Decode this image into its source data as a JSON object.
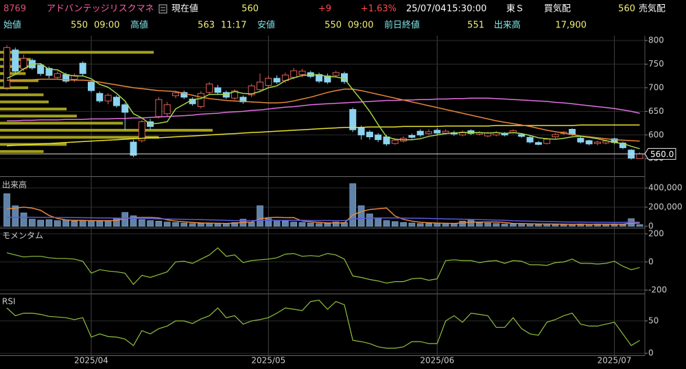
{
  "header": {
    "code": "8769",
    "name": "アドバンテッジリスクマネ",
    "price_label": "現在値",
    "price": "560",
    "change": "+9",
    "change_pct": "+1.63%",
    "date": "25/07/04",
    "time": "15:30:00",
    "market": "東Ｓ",
    "bid_label": "買気配",
    "bid": "560",
    "ask_label": "売気配"
  },
  "summary": {
    "open_label": "始値",
    "open": "550",
    "open_time": "09:00",
    "high_label": "高値",
    "high": "563",
    "high_time": "11:17",
    "low_label": "安値",
    "low": "550",
    "low_time": "09:00",
    "prev_close_label": "前日終値",
    "prev_close": "551",
    "volume_label": "出来高",
    "volume": "17,900"
  },
  "chart_data": [
    {
      "type": "candlestick",
      "categories": [
        null,
        null,
        null,
        null,
        null,
        null,
        null,
        null,
        null,
        null,
        "2025/04",
        null,
        null,
        null,
        null,
        null,
        null,
        null,
        null,
        null,
        null,
        null,
        null,
        null,
        null,
        null,
        null,
        null,
        null,
        null,
        null,
        "2025/05",
        null,
        null,
        null,
        null,
        null,
        null,
        null,
        null,
        null,
        null,
        null,
        null,
        null,
        null,
        null,
        null,
        null,
        null,
        null,
        "2025/06",
        null,
        null,
        null,
        null,
        null,
        null,
        null,
        null,
        null,
        null,
        null,
        null,
        null,
        null,
        null,
        null,
        null,
        null,
        null,
        null,
        "2025/07",
        null,
        null,
        null
      ],
      "open": [
        700,
        780,
        740,
        758,
        748,
        741,
        722,
        728,
        718,
        752,
        712,
        688,
        672,
        680,
        664,
        585,
        588,
        628,
        639,
        645,
        683,
        690,
        676,
        660,
        690,
        700,
        690,
        678,
        680,
        685,
        696,
        705,
        720,
        715,
        722,
        728,
        732,
        728,
        725,
        726,
        730,
        654,
        615,
        606,
        600,
        596,
        582,
        587,
        599,
        608,
        603,
        610,
        604,
        605,
        600,
        609,
        602,
        598,
        600,
        604,
        605,
        601,
        595,
        584,
        582,
        596,
        603,
        612,
        593,
        588,
        582,
        583,
        592,
        583,
        568,
        550
      ],
      "high": [
        790,
        785,
        770,
        762,
        752,
        745,
        735,
        732,
        730,
        756,
        716,
        692,
        688,
        684,
        668,
        590,
        632,
        634,
        680,
        670,
        693,
        694,
        680,
        693,
        712,
        706,
        694,
        697,
        684,
        708,
        730,
        725,
        726,
        732,
        742,
        740,
        736,
        732,
        730,
        736,
        734,
        658,
        620,
        610,
        604,
        600,
        593,
        597,
        603,
        612,
        612,
        614,
        612,
        609,
        610,
        612,
        608,
        607,
        608,
        606,
        612,
        604,
        598,
        587,
        594,
        604,
        608,
        614,
        596,
        590,
        588,
        590,
        594,
        586,
        570,
        563
      ],
      "low": [
        695,
        730,
        735,
        738,
        725,
        720,
        718,
        710,
        712,
        726,
        690,
        668,
        665,
        658,
        610,
        553,
        584,
        612,
        635,
        640,
        678,
        676,
        662,
        656,
        686,
        686,
        676,
        674,
        666,
        680,
        692,
        700,
        708,
        710,
        718,
        722,
        720,
        710,
        708,
        722,
        708,
        606,
        590,
        590,
        585,
        577,
        579,
        584,
        592,
        596,
        600,
        600,
        601,
        598,
        597,
        600,
        599,
        595,
        597,
        597,
        602,
        594,
        582,
        578,
        580,
        593,
        600,
        598,
        582,
        578,
        578,
        580,
        580,
        570,
        548,
        550
      ],
      "close": [
        785,
        735,
        762,
        742,
        730,
        726,
        730,
        714,
        726,
        730,
        694,
        672,
        684,
        662,
        648,
        557,
        628,
        618,
        675,
        664,
        689,
        680,
        666,
        688,
        708,
        690,
        680,
        693,
        670,
        704,
        712,
        720,
        712,
        727,
        736,
        735,
        724,
        714,
        712,
        732,
        713,
        611,
        600,
        596,
        590,
        581,
        589,
        593,
        595,
        600,
        607,
        604,
        608,
        602,
        606,
        603,
        605,
        604,
        605,
        600,
        609,
        597,
        585,
        580,
        591,
        601,
        606,
        601,
        585,
        581,
        585,
        587,
        584,
        573,
        551,
        560
      ],
      "up_color": "#e0605a",
      "down_color": "#8cd3f0",
      "series": [
        {
          "color": "#e8e030",
          "values": [
            577,
            578,
            579,
            580,
            581,
            582,
            583,
            584,
            585,
            586,
            587,
            588,
            589,
            590,
            591,
            592,
            593,
            594,
            594,
            595,
            596,
            597,
            598,
            599,
            600,
            601,
            602,
            603,
            604,
            605,
            606,
            607,
            608,
            609,
            610,
            611,
            612,
            613,
            614,
            615,
            616,
            616,
            616,
            617,
            617,
            617,
            617,
            618,
            618,
            618,
            618,
            618,
            619,
            619,
            619,
            619,
            619,
            619,
            620,
            620,
            620,
            620,
            620,
            620,
            620,
            620,
            620,
            620,
            621,
            621,
            621,
            621,
            621,
            621,
            621,
            621
          ]
        },
        {
          "color": "#e070e0",
          "values": [
            630,
            630,
            631,
            631,
            632,
            632,
            632,
            633,
            633,
            633,
            634,
            634,
            634,
            635,
            635,
            636,
            636,
            637,
            638,
            639,
            640,
            641,
            642,
            644,
            645,
            646,
            648,
            649,
            650,
            652,
            653,
            655,
            657,
            659,
            660,
            662,
            664,
            665,
            666,
            667,
            668,
            669,
            670,
            671,
            672,
            673,
            673,
            674,
            674,
            675,
            675,
            676,
            676,
            677,
            677,
            678,
            678,
            678,
            677,
            676,
            675,
            674,
            673,
            672,
            671,
            669,
            668,
            666,
            664,
            662,
            660,
            658,
            656,
            653,
            650,
            646
          ]
        },
        {
          "color": "#e8883a",
          "values": [
            716,
            716,
            717,
            717,
            718,
            718,
            718,
            717,
            716,
            716,
            715,
            712,
            709,
            706,
            703,
            700,
            698,
            696,
            694,
            693,
            692,
            688,
            684,
            680,
            677,
            675,
            673,
            672,
            671,
            670,
            669,
            668,
            668,
            669,
            672,
            676,
            680,
            685,
            690,
            694,
            697,
            697,
            694,
            690,
            686,
            682,
            678,
            674,
            670,
            666,
            662,
            658,
            654,
            650,
            646,
            642,
            638,
            634,
            630,
            627,
            624,
            621,
            618,
            614,
            610,
            607,
            604,
            601,
            598,
            596,
            594,
            592,
            590,
            589,
            588,
            587
          ]
        },
        {
          "color": "#a6d84a",
          "values": [
            720,
            728,
            740,
            750,
            751,
            739,
            738,
            728,
            725,
            725,
            719,
            707,
            701,
            688,
            672,
            645,
            636,
            623,
            625,
            628,
            655,
            665,
            675,
            677,
            686,
            686,
            686,
            692,
            688,
            687,
            692,
            700,
            704,
            715,
            721,
            726,
            727,
            727,
            724,
            723,
            719,
            696,
            674,
            650,
            622,
            596,
            591,
            590,
            590,
            592,
            597,
            600,
            603,
            604,
            605,
            605,
            605,
            604,
            605,
            603,
            605,
            603,
            599,
            594,
            592,
            591,
            593,
            596,
            597,
            595,
            592,
            588,
            584,
            582,
            576,
            571
          ]
        }
      ],
      "ylim": [
        514,
        803
      ],
      "yticks": [
        550,
        600,
        650,
        700,
        750,
        800
      ],
      "last_label": "560.0",
      "price_volume": {
        "color": "#a3a01c",
        "prices": [
          565,
          580,
          595,
          610,
          625,
          640,
          655,
          670,
          685,
          700,
          715,
          730,
          745,
          760,
          775
        ],
        "volumes": [
          170000,
          260000,
          620000,
          830000,
          480000,
          300000,
          260000,
          190000,
          170000,
          110000,
          150000,
          100000,
          110000,
          120000,
          600000
        ]
      }
    },
    {
      "type": "bar",
      "label": "出来高",
      "values": [
        340000,
        215000,
        140000,
        75000,
        65000,
        70000,
        60000,
        65000,
        55000,
        60000,
        60000,
        55000,
        60000,
        80000,
        145000,
        110000,
        70000,
        60000,
        55000,
        45000,
        40000,
        35000,
        30000,
        30000,
        35000,
        30000,
        30000,
        40000,
        75000,
        40000,
        215000,
        80000,
        60000,
        55000,
        45000,
        40000,
        35000,
        30000,
        30000,
        45000,
        40000,
        445000,
        215000,
        130000,
        85000,
        60000,
        50000,
        40000,
        35000,
        30000,
        30000,
        35000,
        30000,
        30000,
        55000,
        70000,
        40000,
        35000,
        30000,
        25000,
        25000,
        30000,
        25000,
        20000,
        25000,
        20000,
        20000,
        20000,
        25000,
        20000,
        25000,
        20000,
        25000,
        20000,
        80000,
        17900
      ],
      "color": "#5f82a8",
      "series": [
        {
          "color": "#e8883a",
          "values": [
            180000,
            190000,
            200000,
            190000,
            167000,
            113000,
            82000,
            67000,
            63000,
            62000,
            60000,
            59000,
            58000,
            63000,
            80000,
            90000,
            93000,
            93000,
            88000,
            68000,
            54000,
            47000,
            41000,
            36000,
            34000,
            32000,
            31000,
            33000,
            42000,
            43000,
            80000,
            90000,
            94000,
            90000,
            91000,
            56000,
            47000,
            41000,
            36000,
            36000,
            36000,
            118000,
            155000,
            175000,
            183000,
            191000,
            108000,
            73000,
            54000,
            43000,
            37000,
            34000,
            32000,
            31000,
            36000,
            44000,
            45000,
            46000,
            46000,
            40000,
            31000,
            29000,
            27000,
            25000,
            25000,
            24000,
            22000,
            21000,
            22000,
            21000,
            22000,
            22000,
            23000,
            22000,
            34000,
            33000
          ]
        },
        {
          "color": "#5a5ae0",
          "values": [
            95000,
            95000,
            94000,
            94000,
            93000,
            93000,
            92000,
            92000,
            91000,
            90000,
            89000,
            88000,
            87000,
            86000,
            85000,
            84000,
            82000,
            80000,
            78000,
            77000,
            75000,
            73000,
            71000,
            69000,
            67000,
            65000,
            62000,
            60000,
            60000,
            60000,
            63000,
            63000,
            63000,
            63000,
            62000,
            62000,
            61000,
            61000,
            61000,
            60000,
            60000,
            75000,
            82000,
            86000,
            88000,
            88000,
            87000,
            86000,
            85000,
            84000,
            82000,
            80000,
            78000,
            76000,
            74000,
            72000,
            70000,
            68000,
            65000,
            62000,
            58000,
            56000,
            54000,
            52000,
            50000,
            48000,
            46000,
            45000,
            44000,
            43000,
            42000,
            42000,
            41000,
            41000,
            43000,
            43000
          ]
        }
      ],
      "ylim": [
        0,
        486000
      ],
      "yticks": [
        0,
        {
          "value": 200000,
          "label": "200,000"
        },
        {
          "value": 400000,
          "label": "400,000"
        }
      ]
    },
    {
      "type": "line",
      "label": "モメンタム",
      "values": [
        65,
        50,
        35,
        40,
        40,
        30,
        25,
        25,
        20,
        5,
        -80,
        -55,
        -65,
        -70,
        -80,
        -160,
        -95,
        -110,
        -90,
        -70,
        0,
        5,
        -10,
        20,
        50,
        100,
        40,
        50,
        -5,
        10,
        15,
        20,
        30,
        55,
        60,
        40,
        45,
        40,
        60,
        50,
        20,
        -100,
        -110,
        -125,
        -135,
        -150,
        -140,
        -140,
        -120,
        -115,
        -130,
        -120,
        10,
        15,
        10,
        10,
        -5,
        5,
        10,
        -10,
        10,
        5,
        -20,
        -20,
        -25,
        -5,
        0,
        20,
        -10,
        -10,
        -15,
        -10,
        5,
        -30,
        -55,
        -40
      ],
      "color": "#8fc040",
      "ylim": [
        -215,
        224
      ],
      "yticks": [
        -200,
        0,
        200
      ]
    },
    {
      "type": "line",
      "label": "RSI",
      "values": [
        70,
        58,
        62,
        62,
        60,
        57,
        56,
        55,
        52,
        55,
        25,
        30,
        26,
        25,
        22,
        12,
        35,
        30,
        38,
        42,
        50,
        50,
        46,
        53,
        58,
        70,
        55,
        58,
        45,
        50,
        52,
        55,
        62,
        70,
        68,
        66,
        80,
        82,
        68,
        80,
        75,
        20,
        18,
        15,
        10,
        8,
        8,
        10,
        18,
        18,
        15,
        15,
        50,
        58,
        48,
        62,
        60,
        58,
        40,
        40,
        55,
        38,
        30,
        28,
        48,
        52,
        58,
        62,
        45,
        42,
        42,
        45,
        48,
        30,
        12,
        20
      ],
      "color": "#8fc040",
      "ylim": [
        -2,
        88
      ],
      "yticks": [
        0,
        50
      ]
    }
  ]
}
